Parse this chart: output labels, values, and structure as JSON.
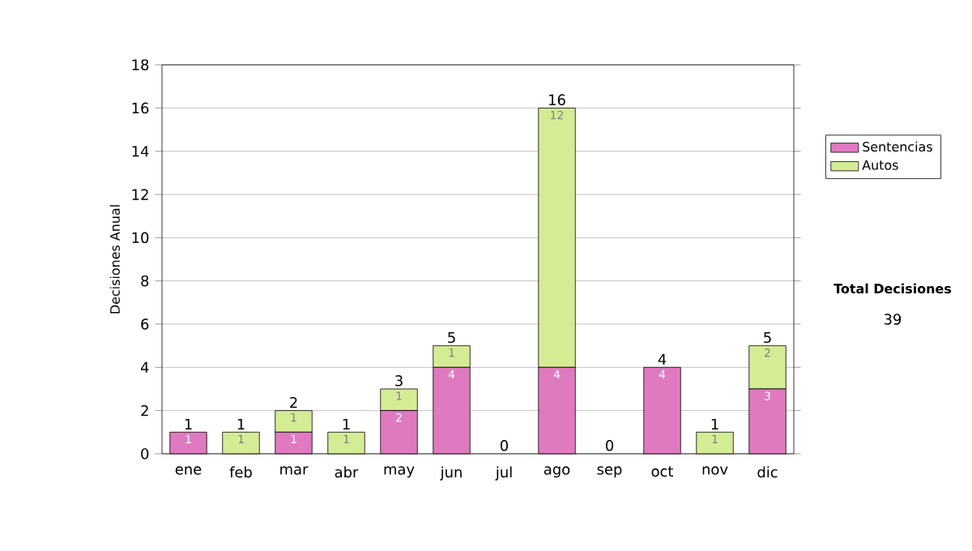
{
  "chart_data": {
    "type": "bar",
    "stacked": true,
    "ylabel": "Decisiones Anual",
    "categories": [
      "ene",
      "feb",
      "mar",
      "abr",
      "may",
      "jun",
      "jul",
      "ago",
      "sep",
      "oct",
      "nov",
      "dic"
    ],
    "series": [
      {
        "name": "Sentencias",
        "color": "#e07ac0",
        "values": [
          1,
          0,
          1,
          0,
          2,
          4,
          0,
          4,
          0,
          4,
          0,
          3
        ],
        "value_labels": [
          "1",
          null,
          "1",
          null,
          "2",
          "4",
          null,
          "4",
          null,
          "4",
          null,
          "3"
        ]
      },
      {
        "name": "Autos",
        "color": "#d4ec94",
        "values": [
          0,
          1,
          1,
          1,
          1,
          1,
          0,
          12,
          0,
          0,
          1,
          2
        ],
        "value_labels": [
          null,
          "1",
          "1",
          "1",
          "1",
          "1",
          null,
          "12",
          null,
          null,
          "1",
          "2"
        ]
      }
    ],
    "totals": [
      "1",
      "1",
      "2",
      "1",
      "3",
      "5",
      "0",
      "16",
      "0",
      "4",
      "1",
      "5"
    ],
    "ylim": [
      0,
      18
    ],
    "yticks": [
      0,
      2,
      4,
      6,
      8,
      10,
      12,
      14,
      16,
      18
    ],
    "grid": "y",
    "legend": "right",
    "annotations": [
      "Total Decisiones",
      "39"
    ]
  }
}
